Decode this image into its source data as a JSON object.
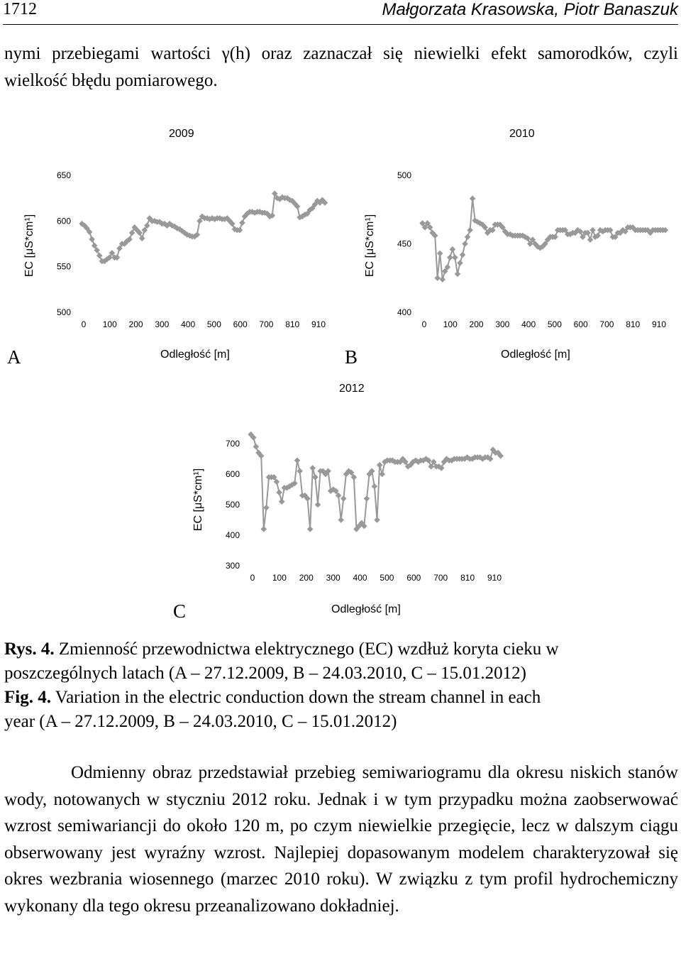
{
  "header": {
    "page_number": "1712",
    "authors": "Małgorzata Krasowska, Piotr Banaszuk"
  },
  "body_top": "nymi przebiegami wartości γ(h) oraz zaznaczał się niewielki efekt samorodków, czyli wielkość błędu pomiarowego.",
  "figure": {
    "xlabel": "Odległość [m]",
    "ylabel": "EC [μS*cm¹]",
    "panels": [
      {
        "letter": "A",
        "year": "2009"
      },
      {
        "letter": "B",
        "year": "2010"
      },
      {
        "letter": "C",
        "year": "2012"
      }
    ]
  },
  "chart_data": [
    {
      "type": "line",
      "title": "2009",
      "panel": "A",
      "xlabel": "Odległość [m]",
      "ylabel": "EC [μS*cm¹]",
      "xticks": [
        "0",
        "100",
        "200",
        "300",
        "400",
        "500",
        "600",
        "700",
        "810",
        "910"
      ],
      "xlim": [
        0,
        1000
      ],
      "ylim": [
        500,
        650
      ],
      "yticks": [
        500,
        550,
        600,
        650
      ],
      "grid": false,
      "marker": "diamond",
      "color": "#999999",
      "x": [
        10,
        20,
        30,
        40,
        50,
        60,
        70,
        80,
        90,
        100,
        110,
        120,
        130,
        140,
        150,
        160,
        170,
        180,
        190,
        200,
        210,
        220,
        230,
        240,
        250,
        260,
        270,
        280,
        290,
        300,
        310,
        320,
        330,
        340,
        350,
        360,
        370,
        380,
        390,
        400,
        410,
        420,
        430,
        440,
        450,
        460,
        470,
        480,
        490,
        500,
        510,
        520,
        530,
        540,
        550,
        560,
        570,
        580,
        590,
        600,
        610,
        620,
        630,
        640,
        650,
        660,
        670,
        680,
        690,
        700,
        710,
        720,
        730,
        740,
        750,
        760,
        770,
        780,
        790,
        800,
        810,
        820,
        830,
        840,
        850,
        860,
        870,
        880,
        890,
        900,
        910,
        920,
        930,
        940,
        950,
        960,
        970,
        980
      ],
      "y": [
        597,
        595,
        592,
        588,
        580,
        573,
        568,
        562,
        556,
        556,
        558,
        560,
        565,
        560,
        560,
        570,
        575,
        575,
        578,
        580,
        587,
        593,
        590,
        587,
        581,
        590,
        595,
        603,
        600,
        600,
        599,
        599,
        597,
        597,
        595,
        597,
        595,
        594,
        592,
        591,
        589,
        587,
        585,
        584,
        583,
        583,
        585,
        600,
        605,
        603,
        603,
        602,
        603,
        602,
        603,
        603,
        602,
        602,
        603,
        600,
        597,
        591,
        590,
        590,
        598,
        605,
        608,
        610,
        610,
        609,
        610,
        610,
        609,
        609,
        608,
        605,
        606,
        630,
        625,
        624,
        626,
        625,
        625,
        623,
        622,
        619,
        616,
        604,
        605,
        607,
        608,
        612,
        614,
        618,
        622,
        620,
        623,
        620
      ]
    },
    {
      "type": "line",
      "title": "2010",
      "panel": "B",
      "xlabel": "Odległość [m]",
      "ylabel": "EC [μS*cm¹]",
      "xticks": [
        "0",
        "100",
        "200",
        "300",
        "400",
        "500",
        "600",
        "700",
        "810",
        "910"
      ],
      "xlim": [
        0,
        1000
      ],
      "ylim": [
        400,
        500
      ],
      "yticks": [
        400,
        450,
        500
      ],
      "grid": false,
      "marker": "diamond",
      "color": "#999999",
      "x": [
        10,
        20,
        30,
        40,
        50,
        60,
        70,
        80,
        90,
        100,
        110,
        120,
        130,
        140,
        150,
        160,
        170,
        180,
        190,
        200,
        210,
        220,
        230,
        240,
        250,
        260,
        270,
        280,
        290,
        300,
        310,
        320,
        330,
        340,
        350,
        360,
        370,
        380,
        390,
        400,
        410,
        420,
        430,
        440,
        450,
        460,
        470,
        480,
        490,
        500,
        510,
        520,
        530,
        540,
        550,
        560,
        570,
        580,
        590,
        600,
        610,
        620,
        630,
        640,
        650,
        660,
        670,
        680,
        690,
        700,
        710,
        720,
        730,
        740,
        750,
        760,
        770,
        780,
        790,
        800,
        810,
        820,
        830,
        840,
        850,
        860,
        870,
        880,
        890,
        900,
        910,
        920,
        930,
        940,
        950,
        960,
        970,
        980
      ],
      "y": [
        465,
        462,
        465,
        462,
        458,
        456,
        425,
        443,
        424,
        430,
        433,
        440,
        446,
        440,
        428,
        436,
        442,
        450,
        455,
        460,
        483,
        467,
        466,
        465,
        464,
        462,
        458,
        460,
        460,
        464,
        464,
        464,
        462,
        459,
        457,
        457,
        456,
        456,
        456,
        456,
        456,
        455,
        454,
        450,
        453,
        450,
        448,
        447,
        448,
        450,
        453,
        455,
        455,
        455,
        460,
        460,
        460,
        460,
        457,
        457,
        458,
        458,
        460,
        459,
        455,
        458,
        458,
        453,
        460,
        455,
        456,
        460,
        459,
        460,
        460,
        460,
        455,
        455,
        458,
        458,
        460,
        459,
        462,
        462,
        462,
        460,
        460,
        460,
        460,
        460,
        460,
        458,
        460,
        460,
        460,
        460,
        460,
        460
      ]
    },
    {
      "type": "line",
      "title": "2012",
      "panel": "C",
      "xlabel": "Odległość [m]",
      "ylabel": "EC [μS*cm¹]",
      "xticks": [
        "0",
        "100",
        "200",
        "300",
        "400",
        "500",
        "600",
        "700",
        "810",
        "910"
      ],
      "xlim": [
        0,
        1000
      ],
      "ylim": [
        300,
        700
      ],
      "yticks": [
        300,
        400,
        500,
        600,
        700
      ],
      "grid": false,
      "marker": "diamond",
      "color": "#999999",
      "x": [
        10,
        20,
        30,
        40,
        50,
        60,
        70,
        80,
        90,
        100,
        110,
        120,
        130,
        140,
        150,
        160,
        170,
        180,
        190,
        200,
        210,
        220,
        230,
        240,
        250,
        260,
        270,
        280,
        290,
        300,
        310,
        320,
        330,
        340,
        350,
        360,
        370,
        380,
        390,
        400,
        410,
        420,
        430,
        440,
        450,
        460,
        470,
        480,
        490,
        500,
        510,
        520,
        530,
        540,
        550,
        560,
        570,
        580,
        590,
        600,
        610,
        620,
        630,
        640,
        650,
        660,
        670,
        680,
        690,
        700,
        710,
        720,
        730,
        740,
        750,
        760,
        770,
        780,
        790,
        800,
        810,
        820,
        830,
        840,
        850,
        860,
        870,
        880,
        890,
        900,
        910,
        920,
        930,
        940,
        950,
        960,
        970,
        980
      ],
      "y": [
        730,
        720,
        690,
        670,
        660,
        420,
        490,
        590,
        590,
        590,
        575,
        540,
        510,
        555,
        555,
        560,
        565,
        570,
        645,
        610,
        530,
        530,
        520,
        420,
        620,
        590,
        500,
        610,
        610,
        600,
        610,
        545,
        550,
        545,
        530,
        450,
        520,
        600,
        610,
        605,
        590,
        420,
        430,
        440,
        430,
        520,
        600,
        610,
        560,
        450,
        630,
        600,
        640,
        645,
        645,
        645,
        640,
        640,
        640,
        650,
        640,
        625,
        630,
        640,
        645,
        640,
        645,
        645,
        650,
        645,
        625,
        640,
        625,
        625,
        620,
        640,
        650,
        645,
        645,
        650,
        650,
        650,
        650,
        650,
        655,
        650,
        650,
        655,
        655,
        655,
        650,
        655,
        655,
        650,
        680,
        670,
        670,
        660
      ]
    }
  ],
  "captions": {
    "pl_label": "Rys. 4.",
    "pl_line1": "Zmienność przewodnictwa elektrycznego (EC) wzdłuż koryta cieku w",
    "pl_line2": "poszczególnych latach (A – 27.12.2009, B – 24.03.2010, C – 15.01.2012)",
    "en_label": "Fig. 4.",
    "en_line1": "Variation in the electric conduction down the stream channel in each",
    "en_line2": "year (A – 27.12.2009, B – 24.03.2010, C – 15.01.2012)"
  },
  "body_bottom": "Odmienny obraz przedstawiał przebieg semiwariogramu dla okresu niskich stanów wody, notowanych w styczniu 2012 roku. Jednak i w tym przypadku można zaobserwować wzrost semiwariancji do około 120 m, po czym niewielkie przegięcie, lecz w dalszym ciągu obserwowany jest wyraźny wzrost. Najlepiej dopasowanym modelem charakteryzował się okres wezbrania wiosennego (marzec 2010 roku). W związku z tym profil hydrochemiczny wykonany dla tego okresu przeanalizowano dokładniej."
}
